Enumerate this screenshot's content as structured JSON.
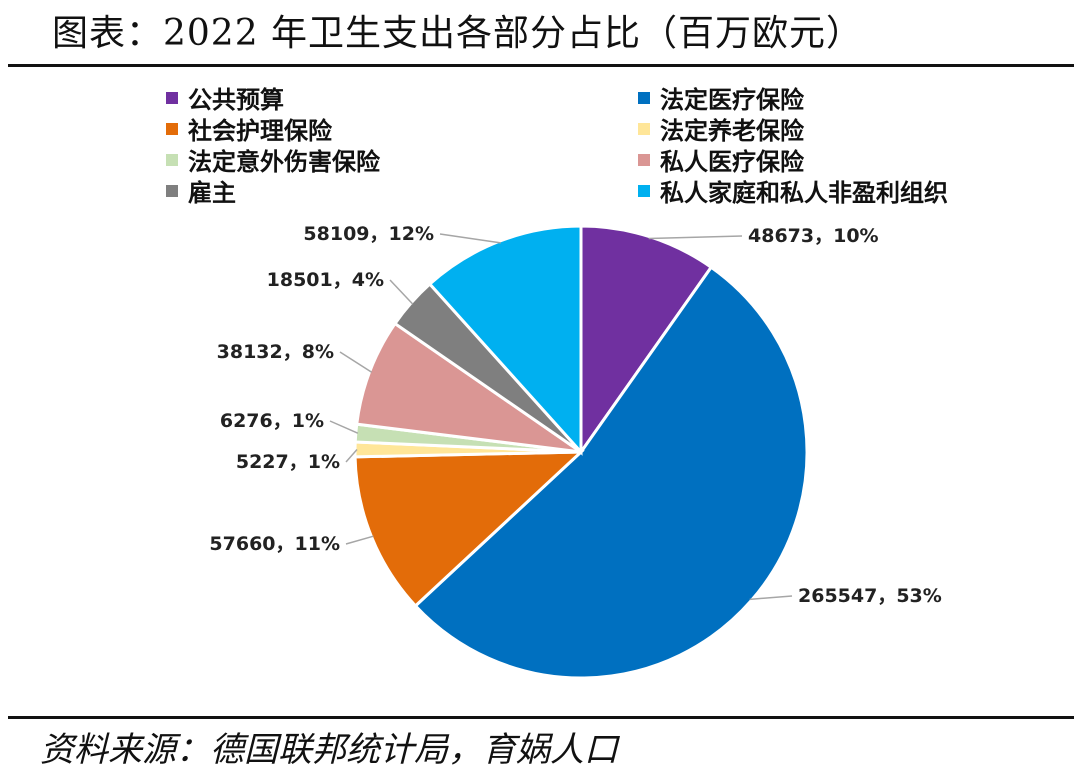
{
  "title": "图表：2022 年卫生支出各部分占比（百万欧元）",
  "source": "资料来源：德国联邦统计局，育娲人口",
  "chart_data": {
    "type": "pie",
    "title": "图表：2022 年卫生支出各部分占比（百万欧元）",
    "legend_position": "top",
    "slices": [
      {
        "name": "公共预算",
        "value": 48673,
        "percent": "10%",
        "label": "48673，10%",
        "color": "#7030A0"
      },
      {
        "name": "法定医疗保险",
        "value": 265547,
        "percent": "53%",
        "label": "265547，53%",
        "color": "#0070C0"
      },
      {
        "name": "社会护理保险",
        "value": 57660,
        "percent": "11%",
        "label": "57660，11%",
        "color": "#E36C09"
      },
      {
        "name": "法定养老保险",
        "value": 5227,
        "percent": "1%",
        "label": "5227，1%",
        "color": "#FFE699"
      },
      {
        "name": "法定意外伤害保险",
        "value": 6276,
        "percent": "1%",
        "label": "6276，1%",
        "color": "#C6E0B4"
      },
      {
        "name": "私人医疗保险",
        "value": 38132,
        "percent": "8%",
        "label": "38132，8%",
        "color": "#DA9694"
      },
      {
        "name": "雇主",
        "value": 18501,
        "percent": "4%",
        "label": "18501，4%",
        "color": "#7F7F7F"
      },
      {
        "name": "私人家庭和私人非盈利组织",
        "value": 58109,
        "percent": "12%",
        "label": "58109，12%",
        "color": "#00B0F0"
      }
    ]
  }
}
